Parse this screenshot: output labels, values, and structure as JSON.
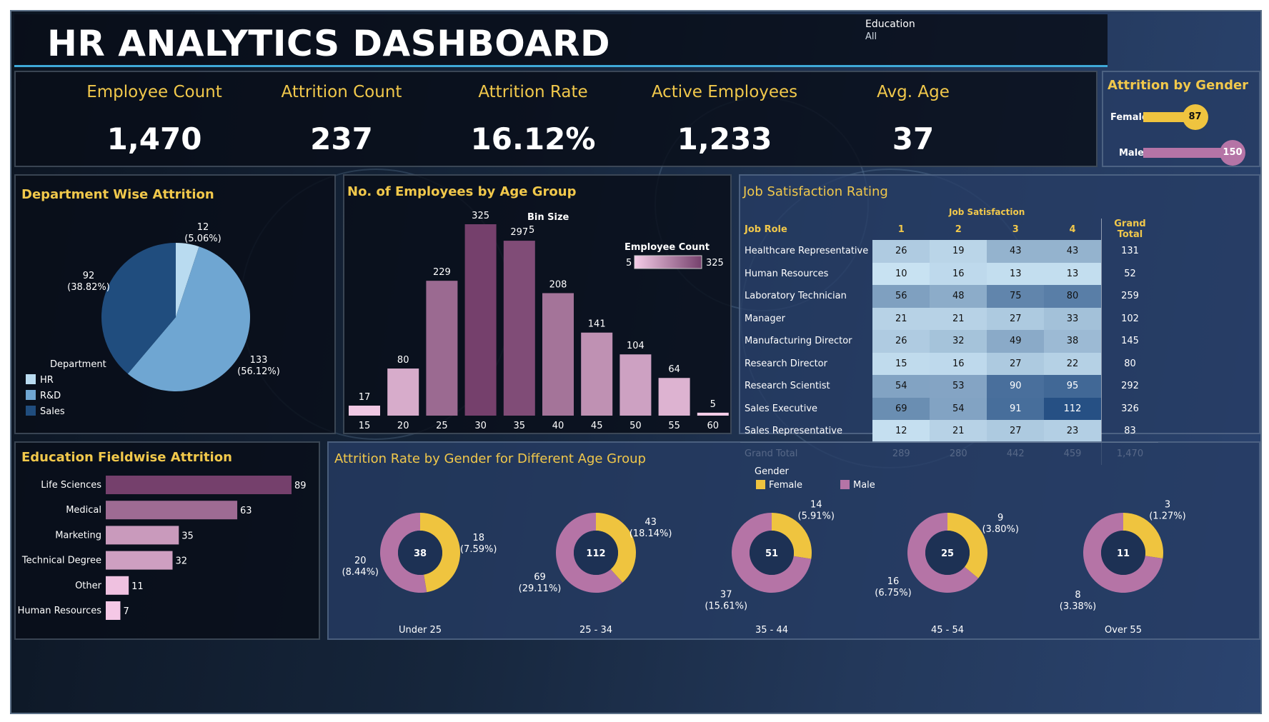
{
  "header": {
    "title": "HR ANALYTICS DASHBOARD",
    "filter_label": "Education",
    "filter_value": "All"
  },
  "kpis": [
    {
      "label": "Employee Count",
      "value": "1,470"
    },
    {
      "label": "Attrition Count",
      "value": "237"
    },
    {
      "label": "Attrition Rate",
      "value": "16.12%"
    },
    {
      "label": "Active Employees",
      "value": "1,233"
    },
    {
      "label": "Avg. Age",
      "value": "37"
    }
  ],
  "gender_panel": {
    "title": "Attrition by Gender",
    "female_label": "Female",
    "female_value": "87",
    "male_label": "Male",
    "male_value": "150"
  },
  "dept_panel": {
    "title": "Department Wise Attrition",
    "legend_title": "Department",
    "legend": [
      "HR",
      "R&D",
      "Sales"
    ],
    "labels": [
      {
        "count": "12",
        "pct": "(5.06%)"
      },
      {
        "count": "133",
        "pct": "(56.12%)"
      },
      {
        "count": "92",
        "pct": "(38.82%)"
      }
    ]
  },
  "age_panel": {
    "title": "No. of Employees by Age Group",
    "bin_label": "Bin Size",
    "bin_value": "5",
    "legend_title": "Employee Count",
    "legend_min": "5",
    "legend_max": "325"
  },
  "job_panel": {
    "title": "Job Satisfaction Rating",
    "super_header": "Job Satisfaction",
    "col_role": "Job Role",
    "cols": [
      "1",
      "2",
      "3",
      "4"
    ],
    "col_total": "Grand Total",
    "rows": [
      {
        "role": "Healthcare Representative",
        "v": [
          "26",
          "19",
          "43",
          "43"
        ],
        "t": "131"
      },
      {
        "role": "Human Resources",
        "v": [
          "10",
          "16",
          "13",
          "13"
        ],
        "t": "52"
      },
      {
        "role": "Laboratory Technician",
        "v": [
          "56",
          "48",
          "75",
          "80"
        ],
        "t": "259"
      },
      {
        "role": "Manager",
        "v": [
          "21",
          "21",
          "27",
          "33"
        ],
        "t": "102"
      },
      {
        "role": "Manufacturing Director",
        "v": [
          "26",
          "32",
          "49",
          "38"
        ],
        "t": "145"
      },
      {
        "role": "Research Director",
        "v": [
          "15",
          "16",
          "27",
          "22"
        ],
        "t": "80"
      },
      {
        "role": "Research Scientist",
        "v": [
          "54",
          "53",
          "90",
          "95"
        ],
        "t": "292"
      },
      {
        "role": "Sales Executive",
        "v": [
          "69",
          "54",
          "91",
          "112"
        ],
        "t": "326"
      },
      {
        "role": "Sales Representative",
        "v": [
          "12",
          "21",
          "27",
          "23"
        ],
        "t": "83"
      }
    ],
    "grand_label": "Grand Total",
    "grand": [
      "289",
      "280",
      "442",
      "459"
    ],
    "grand_total": "1,470"
  },
  "edu_panel": {
    "title": "Education Fieldwise Attrition"
  },
  "donut_panel": {
    "title": "Attrition Rate by Gender for Different Age Group",
    "legend_title": "Gender",
    "legend": [
      "Female",
      "Male"
    ],
    "groups": [
      {
        "name": "Under 25",
        "total": "38",
        "female": 18,
        "female_pct": "(7.59%)",
        "male": 20,
        "male_pct": "(8.44%)"
      },
      {
        "name": "25 - 34",
        "total": "112",
        "female": 43,
        "female_pct": "(18.14%)",
        "male": 69,
        "male_pct": "(29.11%)"
      },
      {
        "name": "35 - 44",
        "total": "51",
        "female": 14,
        "female_pct": "(5.91%)",
        "male": 37,
        "male_pct": "(15.61%)"
      },
      {
        "name": "45 - 54",
        "total": "25",
        "female": 9,
        "female_pct": "(3.80%)",
        "male": 16,
        "male_pct": "(6.75%)"
      },
      {
        "name": "Over 55",
        "total": "11",
        "female": 3,
        "female_pct": "(1.27%)",
        "male": 8,
        "male_pct": "(3.38%)"
      }
    ]
  },
  "colors": {
    "accent": "#f1c84b",
    "female": "#efc43f",
    "male": "#b574a6",
    "hr": "#b9dbf0",
    "rnd": "#6fa6d2",
    "sales": "#204d7e"
  },
  "chart_data": [
    {
      "type": "pie",
      "categories": [
        "HR",
        "R&D",
        "Sales"
      ],
      "values": [
        12,
        133,
        92
      ]
    },
    {
      "type": "bar",
      "categories": [
        "15",
        "20",
        "25",
        "30",
        "35",
        "40",
        "45",
        "50",
        "55",
        "60"
      ],
      "values": [
        17,
        80,
        229,
        325,
        297,
        208,
        141,
        104,
        64,
        5
      ]
    },
    {
      "type": "bar",
      "categories": [
        "Life Sciences",
        "Medical",
        "Marketing",
        "Technical Degree",
        "Other",
        "Human Resources"
      ],
      "values": [
        89,
        63,
        35,
        32,
        11,
        7
      ]
    },
    {
      "type": "pie",
      "categories": [
        "Under 25",
        "25 - 34",
        "35 - 44",
        "45 - 54",
        "Over 55"
      ],
      "series": [
        {
          "name": "Female",
          "values": [
            18,
            43,
            14,
            9,
            3
          ]
        },
        {
          "name": "Male",
          "values": [
            20,
            69,
            37,
            16,
            8
          ]
        }
      ]
    },
    {
      "type": "bar",
      "categories": [
        "Female",
        "Male"
      ],
      "values": [
        87,
        150
      ]
    }
  ]
}
